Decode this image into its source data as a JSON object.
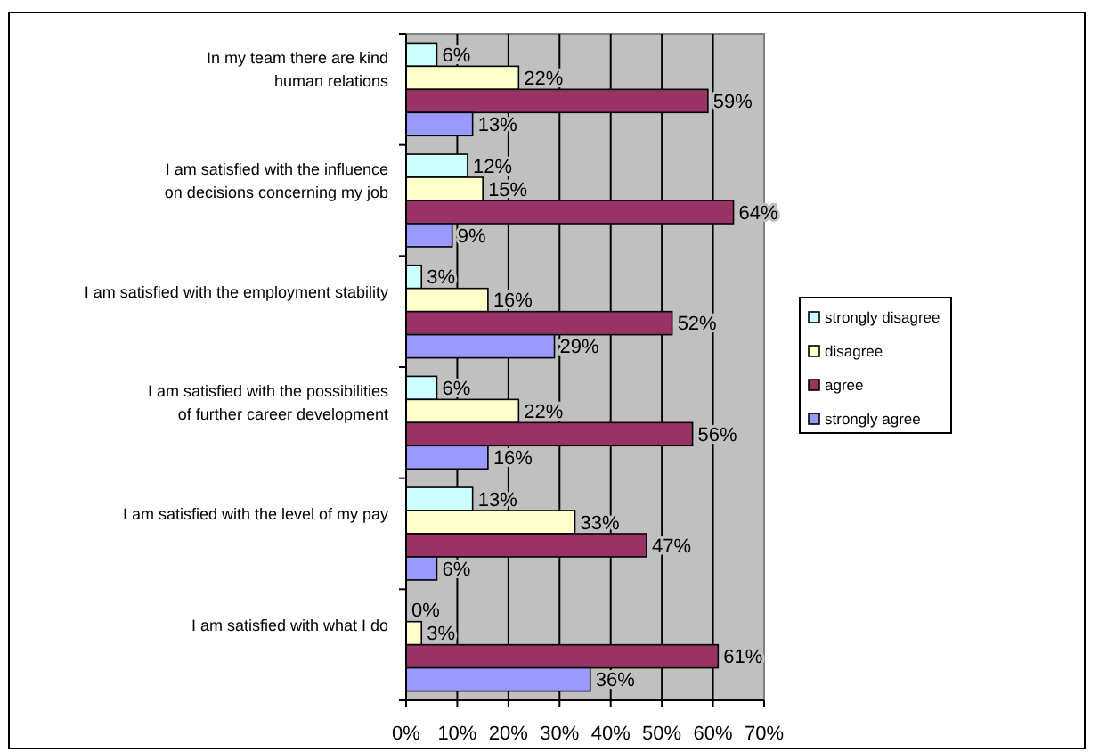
{
  "chart_data": {
    "type": "bar",
    "orientation": "horizontal",
    "categories": [
      "In my team there are kind\nhuman relations",
      "I am satisfied with the influence\non decisions concerning my job",
      "I am satisfied with the employment stability",
      "I am satisfied with the possibilities\nof further career development",
      "I am satisfied with the level of my pay",
      "I am satisfied with what I do"
    ],
    "series": [
      {
        "name": "strongly disagree",
        "color": "#ccffff",
        "values": [
          6,
          12,
          3,
          6,
          13,
          0
        ],
        "value_labels": [
          "6%",
          "12%",
          "3%",
          "6%",
          "13%",
          "0%"
        ]
      },
      {
        "name": "disagree",
        "color": "#ffffcc",
        "values": [
          22,
          15,
          16,
          22,
          33,
          3
        ],
        "value_labels": [
          "22%",
          "15%",
          "16%",
          "22%",
          "33%",
          "3%"
        ]
      },
      {
        "name": "agree",
        "color": "#993366",
        "values": [
          59,
          64,
          52,
          56,
          47,
          61
        ],
        "value_labels": [
          "59%",
          "64%",
          "52%",
          "56%",
          "47%",
          "61%"
        ]
      },
      {
        "name": "strongly agree",
        "color": "#9999ff",
        "values": [
          13,
          9,
          29,
          16,
          6,
          36
        ],
        "value_labels": [
          "13%",
          "9%",
          "29%",
          "16%",
          "6%",
          "36%"
        ]
      }
    ],
    "xlim": [
      0,
      70
    ],
    "xticks": [
      {
        "value": 0,
        "label": "0%"
      },
      {
        "value": 10,
        "label": "10%"
      },
      {
        "value": 20,
        "label": "20%"
      },
      {
        "value": 30,
        "label": "30%"
      },
      {
        "value": 40,
        "label": "40%"
      },
      {
        "value": 50,
        "label": "50%"
      },
      {
        "value": 60,
        "label": "60%"
      },
      {
        "value": 70,
        "label": "70%"
      }
    ],
    "grid": "x",
    "legend": "right"
  }
}
